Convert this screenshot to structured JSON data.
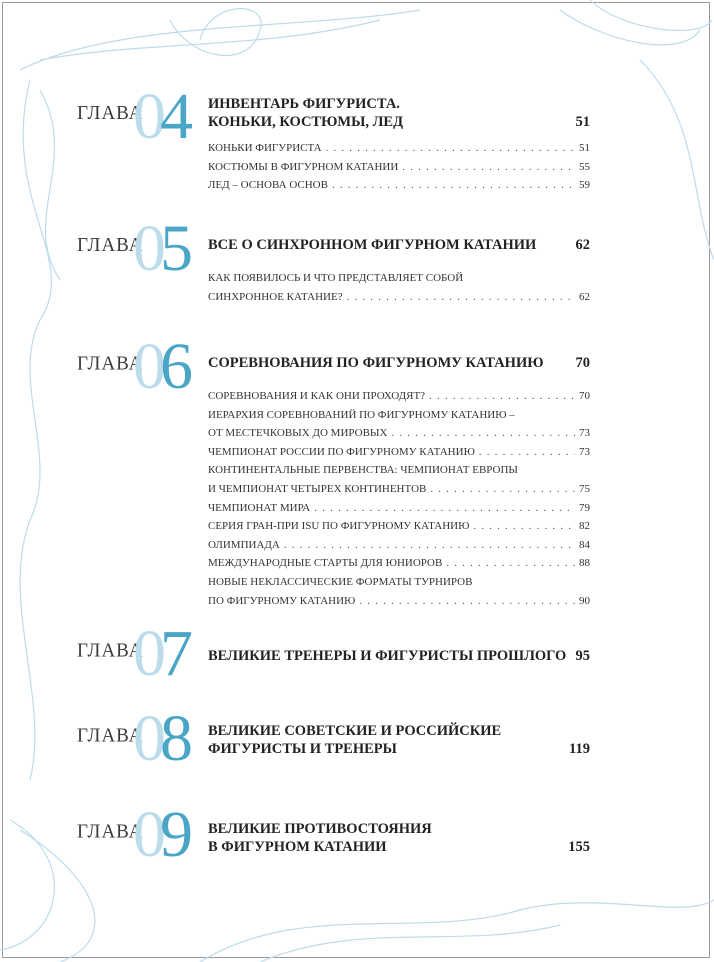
{
  "chapter_label": "ГЛАВА",
  "colors": {
    "accent_light": "#bcdceb",
    "accent": "#4aa6c6"
  },
  "chapters": [
    {
      "num1": "0",
      "num2": "4",
      "title_lines": [
        "ИНВЕНТАРЬ ФИГУРИСТА.",
        "КОНЬКИ, КОСТЮМЫ, ЛЕД"
      ],
      "page": "51",
      "entries": [
        {
          "text": "КОНЬКИ ФИГУРИСТА",
          "page": "51"
        },
        {
          "text": "КОСТЮМЫ В ФИГУРНОМ КАТАНИИ",
          "page": "55"
        },
        {
          "text": "ЛЕД – ОСНОВА ОСНОВ",
          "page": "59"
        }
      ]
    },
    {
      "num1": "0",
      "num2": "5",
      "title_lines": [
        "ВСЕ О СИНХРОННОМ ФИГУРНОМ КАТАНИИ"
      ],
      "page": "62",
      "entries": [
        {
          "text": "КАК ПОЯВИЛОСЬ И ЧТО ПРЕДСТАВЛЯЕТ СОБОЙ",
          "page": ""
        },
        {
          "text": "СИНХРОННОЕ КАТАНИЕ?",
          "page": "62"
        }
      ]
    },
    {
      "num1": "0",
      "num2": "6",
      "title_lines": [
        "СОРЕВНОВАНИЯ ПО ФИГУРНОМУ КАТАНИЮ"
      ],
      "page": "70",
      "entries": [
        {
          "text": "СОРЕВНОВАНИЯ И КАК ОНИ ПРОХОДЯТ?",
          "page": "70"
        },
        {
          "text": "ИЕРАРХИЯ СОРЕВНОВАНИЙ ПО ФИГУРНОМУ КАТАНИЮ –",
          "page": ""
        },
        {
          "text": "ОТ МЕСТЕЧКОВЫХ ДО МИРОВЫХ",
          "page": "73"
        },
        {
          "text": "ЧЕМПИОНАТ РОССИИ ПО ФИГУРНОМУ КАТАНИЮ",
          "page": "73"
        },
        {
          "text": "КОНТИНЕНТАЛЬНЫЕ ПЕРВЕНСТВА: ЧЕМПИОНАТ ЕВРОПЫ",
          "page": ""
        },
        {
          "text": "И ЧЕМПИОНАТ ЧЕТЫРЕХ КОНТИНЕНТОВ",
          "page": "75"
        },
        {
          "text": "ЧЕМПИОНАТ МИРА",
          "page": "79"
        },
        {
          "text": "СЕРИЯ ГРАН-ПРИ ISU ПО ФИГУРНОМУ КАТАНИЮ",
          "page": "82"
        },
        {
          "text": "ОЛИМПИАДА",
          "page": "84"
        },
        {
          "text": "МЕЖДУНАРОДНЫЕ СТАРТЫ ДЛЯ ЮНИОРОВ",
          "page": "88"
        },
        {
          "text": "НОВЫЕ НЕКЛАССИЧЕСКИЕ ФОРМАТЫ ТУРНИРОВ",
          "page": ""
        },
        {
          "text": "ПО ФИГУРНОМУ КАТАНИЮ",
          "page": "90"
        }
      ]
    },
    {
      "num1": "0",
      "num2": "7",
      "title_lines": [
        "ВЕЛИКИЕ ТРЕНЕРЫ И ФИГУРИСТЫ ПРОШЛОГО"
      ],
      "page": "95",
      "entries": []
    },
    {
      "num1": "0",
      "num2": "8",
      "title_lines": [
        "ВЕЛИКИЕ СОВЕТСКИЕ И РОССИЙСКИЕ",
        "ФИГУРИСТЫ И ТРЕНЕРЫ"
      ],
      "page": "119",
      "entries": []
    },
    {
      "num1": "0",
      "num2": "9",
      "title_lines": [
        "ВЕЛИКИЕ ПРОТИВОСТОЯНИЯ",
        "В ФИГУРНОМ КАТАНИИ"
      ],
      "page": "155",
      "entries": []
    }
  ]
}
